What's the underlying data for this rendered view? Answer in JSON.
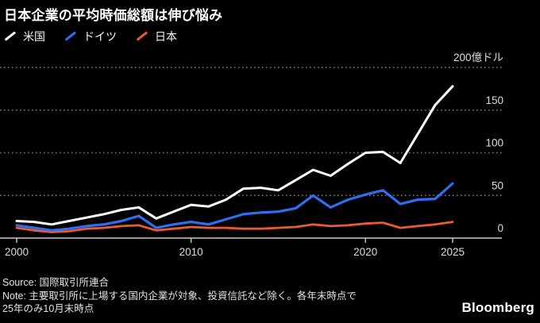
{
  "header": {
    "title": "日本企業の平均時価総額は伸び悩み"
  },
  "legend": [
    {
      "label": "米国",
      "color": "#ffffff"
    },
    {
      "label": "ドイツ",
      "color": "#2e6ff2"
    },
    {
      "label": "日本",
      "color": "#ea5b33"
    }
  ],
  "chart_data": {
    "type": "line",
    "title": "日本企業の平均時価総額は伸び悩み",
    "x": [
      2000,
      2001,
      2002,
      2003,
      2004,
      2005,
      2006,
      2007,
      2008,
      2009,
      2010,
      2011,
      2012,
      2013,
      2014,
      2015,
      2016,
      2017,
      2018,
      2019,
      2020,
      2021,
      2022,
      2023,
      2024,
      2025
    ],
    "series": [
      {
        "name": "米国",
        "color": "#ffffff",
        "values": [
          20,
          19,
          16,
          20,
          24,
          28,
          33,
          36,
          23,
          31,
          39,
          37,
          45,
          58,
          59,
          56,
          68,
          80,
          73,
          87,
          100,
          101,
          88,
          122,
          156,
          178
        ]
      },
      {
        "name": "ドイツ",
        "color": "#2e6ff2",
        "values": [
          15,
          12,
          9,
          11,
          14,
          16,
          20,
          26,
          12,
          16,
          19,
          16,
          22,
          28,
          30,
          31,
          35,
          50,
          36,
          45,
          51,
          56,
          40,
          45,
          46,
          64
        ]
      },
      {
        "name": "日本",
        "color": "#ea5b33",
        "values": [
          12,
          9,
          7,
          8,
          11,
          12,
          14,
          15,
          9,
          11,
          13,
          12,
          12,
          11,
          11,
          12,
          13,
          16,
          14,
          15,
          17,
          18,
          12,
          14,
          16,
          19
        ]
      }
    ],
    "ylim": [
      0,
      200
    ],
    "yticks": [
      0,
      50,
      100,
      150,
      200
    ],
    "ytick_labels": [
      "0",
      "50",
      "100",
      "150",
      "200億ドル"
    ],
    "xticks": [
      2000,
      2010,
      2020,
      2025
    ],
    "xtick_labels": [
      "2000",
      "2010",
      "2020",
      "2025"
    ],
    "grid": "horizontal-dotted",
    "legend_position": "top-left",
    "unit_note": "億ドル"
  },
  "footer": {
    "source": "Source: 国際取引所連合",
    "note_line1": "Note: 主要取引所に上場する国内企業が対象、投資信託など除く。各年末時点で",
    "note_line2": "25年のみ10月末時点",
    "brand": "Bloomberg"
  },
  "colors": {
    "background": "#000000",
    "grid": "#7a7a7a",
    "axis": "#c8c8c8",
    "tick_text": "#dcdcdc"
  }
}
